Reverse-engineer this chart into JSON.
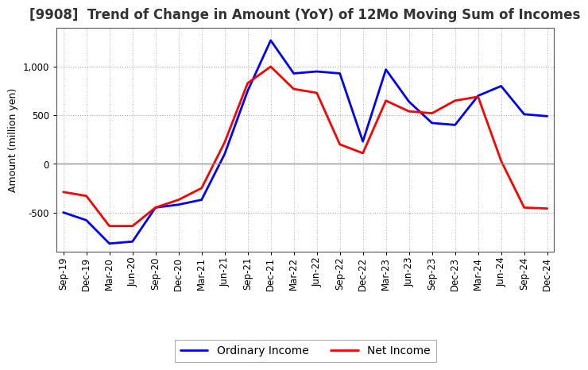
{
  "title": "[9908]  Trend of Change in Amount (YoY) of 12Mo Moving Sum of Incomes",
  "ylabel": "Amount (million yen)",
  "x_labels": [
    "Sep-19",
    "Dec-19",
    "Mar-20",
    "Jun-20",
    "Sep-20",
    "Dec-20",
    "Mar-21",
    "Jun-21",
    "Sep-21",
    "Dec-21",
    "Mar-22",
    "Jun-22",
    "Sep-22",
    "Dec-22",
    "Mar-23",
    "Jun-23",
    "Sep-23",
    "Dec-23",
    "Mar-24",
    "Jun-24",
    "Sep-24",
    "Dec-24"
  ],
  "ordinary_income": [
    -500,
    -580,
    -820,
    -800,
    -450,
    -420,
    -370,
    100,
    750,
    1270,
    930,
    950,
    930,
    230,
    970,
    640,
    420,
    400,
    700,
    800,
    510,
    490
  ],
  "net_income": [
    -290,
    -330,
    -640,
    -640,
    -450,
    -370,
    -250,
    220,
    830,
    1000,
    770,
    730,
    200,
    110,
    650,
    540,
    520,
    650,
    690,
    30,
    -450,
    -460
  ],
  "ordinary_color": "#0000ff",
  "net_color": "#ff0000",
  "background_color": "#ffffff",
  "grid_color": "#aaaaaa",
  "ylim": [
    -900,
    1400
  ],
  "yticks": [
    -500,
    0,
    500,
    1000
  ],
  "line_width": 2.0,
  "title_fontsize": 12,
  "title_color": "#333333",
  "legend_fontsize": 10,
  "axis_fontsize": 9,
  "tick_fontsize": 8.5
}
